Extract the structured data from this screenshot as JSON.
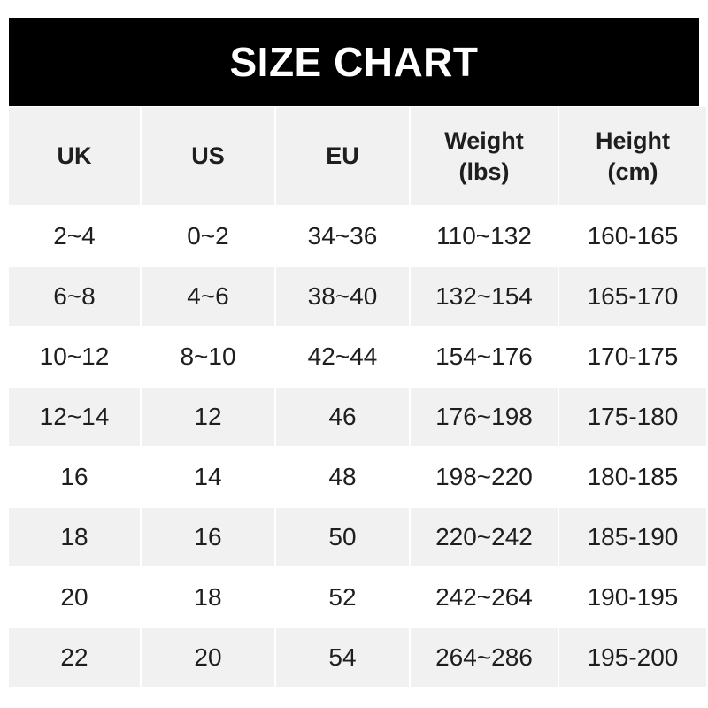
{
  "title": "SIZE CHART",
  "headers": [
    {
      "line1": "UK",
      "line2": ""
    },
    {
      "line1": "US",
      "line2": ""
    },
    {
      "line1": "EU",
      "line2": ""
    },
    {
      "line1": "Weight",
      "line2": "(lbs)"
    },
    {
      "line1": "Height",
      "line2": "(cm)"
    }
  ],
  "rows": [
    [
      "2~4",
      "0~2",
      "34~36",
      "110~132",
      "160-165"
    ],
    [
      "6~8",
      "4~6",
      "38~40",
      "132~154",
      "165-170"
    ],
    [
      "10~12",
      "8~10",
      "42~44",
      "154~176",
      "170-175"
    ],
    [
      "12~14",
      "12",
      "46",
      "176~198",
      "175-180"
    ],
    [
      "16",
      "14",
      "48",
      "198~220",
      "180-185"
    ],
    [
      "18",
      "16",
      "50",
      "220~242",
      "185-190"
    ],
    [
      "20",
      "18",
      "52",
      "242~264",
      "190-195"
    ],
    [
      "22",
      "20",
      "54",
      "264~286",
      "195-200"
    ]
  ],
  "colors": {
    "title_bg": "#000000",
    "stripe": "#f1f1f1",
    "text": "#1e1e1e"
  }
}
